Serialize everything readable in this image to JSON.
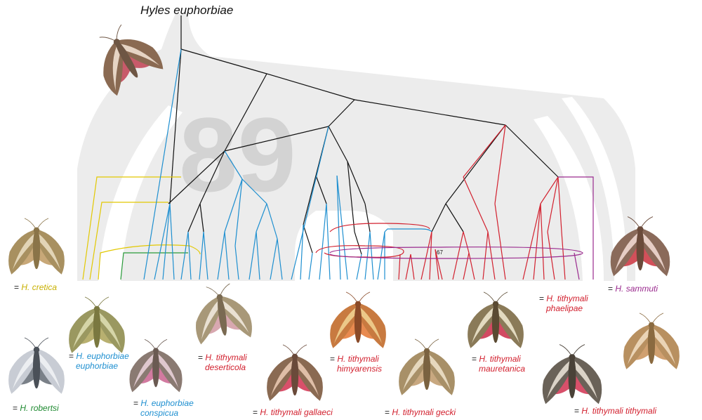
{
  "title": "Hyles euphorbiae",
  "watermark": "89",
  "node_label": "67",
  "colors": {
    "cretica": "#e2c800",
    "robertsi": "#2a9a3a",
    "euphorbiae": "#1e8fd0",
    "tithymali": "#d2202e",
    "sammuti": "#9a2a8e",
    "backbone": "#111111",
    "watermark": "#e3e3e3"
  },
  "labels": {
    "eq": "=",
    "cretica": "H. cretica",
    "robertsi": "H. robertsi",
    "euphorbiae_euphorbiae_1": "H. euphorbiae",
    "euphorbiae_euphorbiae_2": "euphorbiae",
    "euphorbiae_conspicua_1": "H. euphorbiae",
    "euphorbiae_conspicua_2": "conspicua",
    "deserticola_1": "H. tithymali",
    "deserticola_2": "deserticola",
    "gallaeci": "H. tithymali gallaeci",
    "himyarensis_1": "H. tithymali",
    "himyarensis_2": "himyarensis",
    "gecki": "H. tithymali gecki",
    "mauretanica_1": "H. tithymali",
    "mauretanica_2": "mauretanica",
    "phaelipae_1": "H. tithymali",
    "phaelipae_2": "phaelipae",
    "sammuti": "H. sammuti",
    "tithymali": "H. tithymali tithymali"
  }
}
